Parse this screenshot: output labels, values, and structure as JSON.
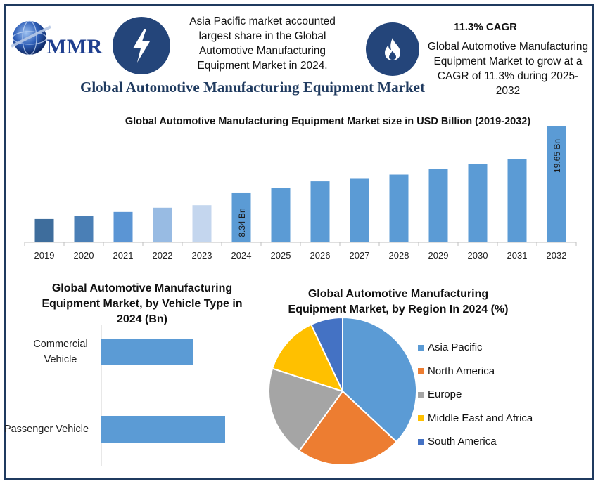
{
  "header": {
    "logo_text": "MMR",
    "left_callout": "Asia Pacific market accounted largest share in the Global Automotive Manufacturing Equipment Market in 2024.",
    "cagr_title": "11.3% CAGR",
    "right_callout": "Global Automotive Manufacturing Equipment Market to grow at a CAGR of 11.3% during 2025-2032",
    "icons": {
      "left": "lightning-bolt-icon",
      "right": "flame-icon"
    }
  },
  "main_title": "Global Automotive Manufacturing Equipment Market",
  "chart_data": [
    {
      "type": "bar",
      "title": "Global Automotive Manufacturing Equipment Market size in USD Billion (2019-2032)",
      "categories": [
        "2019",
        "2020",
        "2021",
        "2022",
        "2023",
        "2024",
        "2025",
        "2026",
        "2027",
        "2028",
        "2029",
        "2030",
        "2031",
        "2032"
      ],
      "values": [
        3.94,
        4.52,
        5.14,
        5.86,
        6.29,
        8.34,
        9.25,
        10.35,
        10.78,
        11.49,
        12.43,
        13.32,
        14.13,
        19.65
      ],
      "data_labels": {
        "2024": "8.34 Bn",
        "2032": "19.65 Bn"
      },
      "colors": [
        "#3e6d9c",
        "#4a7fb6",
        "#5b95d4",
        "#98bbe3",
        "#c4d6ee",
        "#5b9bd5",
        "#5b9bd5",
        "#5b9bd5",
        "#5b9bd5",
        "#5b9bd5",
        "#5b9bd5",
        "#5b9bd5",
        "#5b9bd5",
        "#5b9bd5"
      ],
      "ylim": [
        0,
        19.65
      ],
      "grid": false
    },
    {
      "type": "bar",
      "orientation": "horizontal",
      "title": "Global Automotive Manufacturing Equipment Market, by Vehicle Type in 2024 (Bn)",
      "categories": [
        "Commercial\nVehicle",
        "Passenger Vehicle"
      ],
      "values": [
        2.7,
        3.65
      ],
      "color": "#5b9bd5",
      "xlim": [
        0,
        4.4
      ],
      "grid": false
    },
    {
      "type": "pie",
      "title": "Global Automotive Manufacturing Equipment Market, by Region In 2024 (%)",
      "labels": [
        "Asia Pacific",
        "North America",
        "Europe",
        "Middle East and Africa",
        "South America"
      ],
      "values": [
        37,
        23,
        20,
        13,
        7
      ],
      "colors": [
        "#5b9bd5",
        "#ed7d31",
        "#a5a5a5",
        "#ffc000",
        "#4472c4"
      ],
      "legend_placement": "right"
    }
  ]
}
